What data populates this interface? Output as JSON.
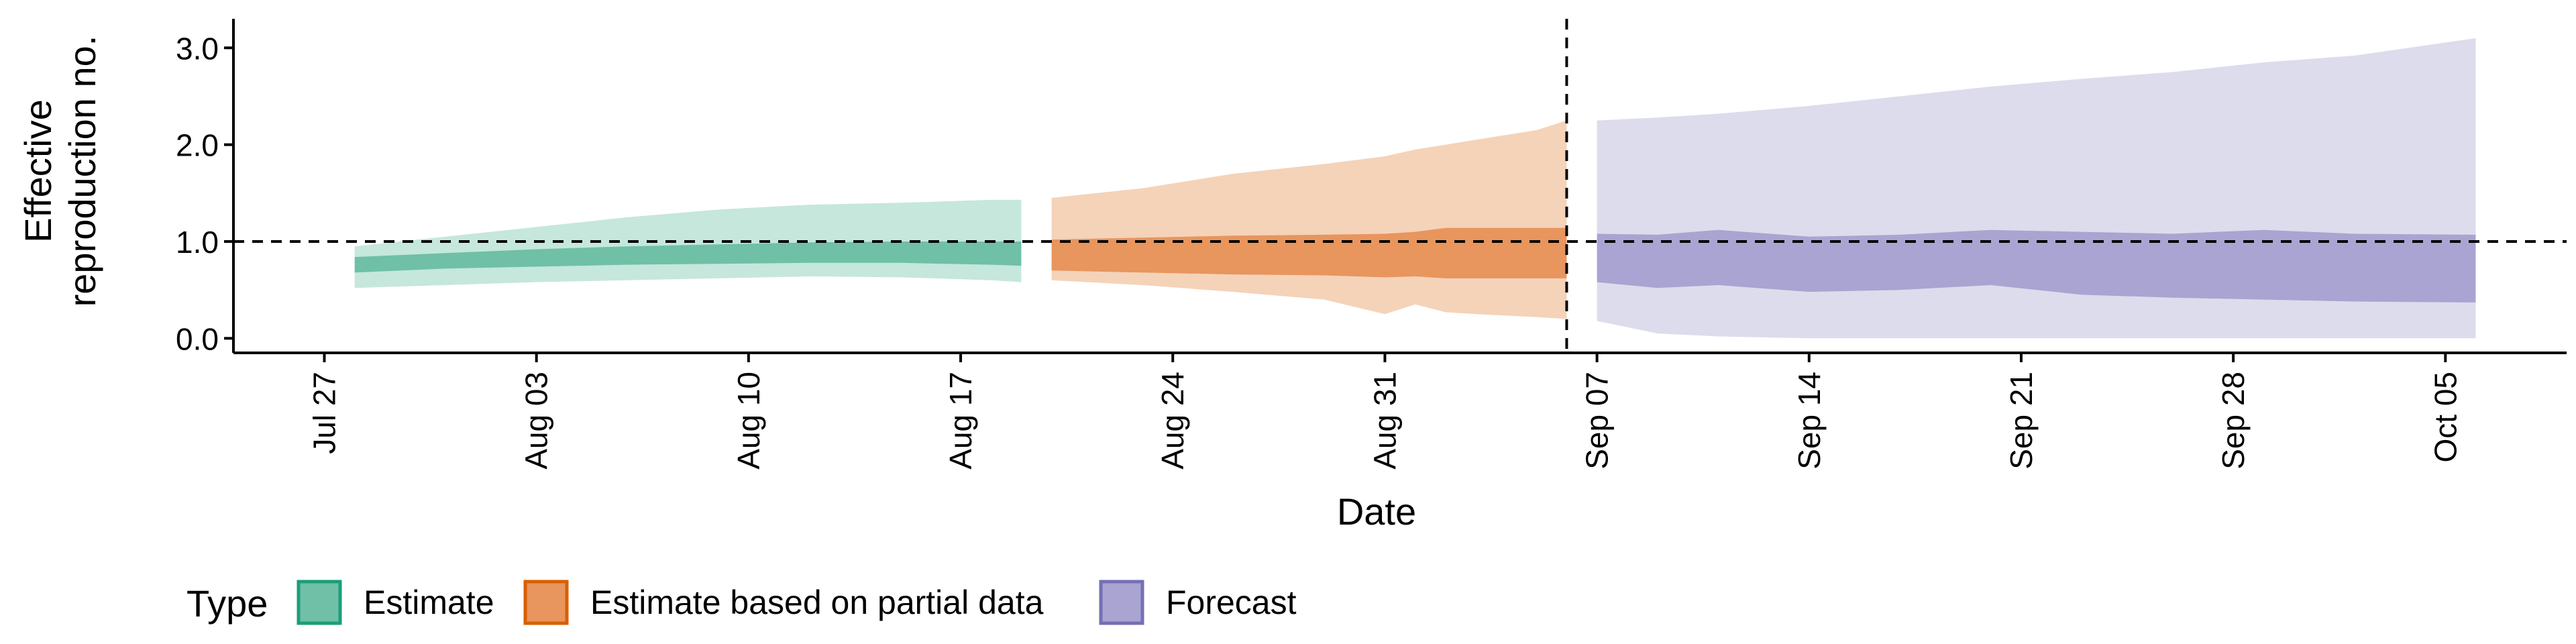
{
  "chart_data": {
    "type": "area",
    "title": "",
    "xlabel": "Date",
    "ylabel_lines": [
      "Effective",
      "reproduction no."
    ],
    "xlim": [
      "2020-07-24",
      "2020-10-09"
    ],
    "ylim": [
      -0.15,
      3.3
    ],
    "yticks": [
      0,
      1,
      2,
      3
    ],
    "ytick_labels": [
      "0.0",
      "1.0",
      "2.0",
      "3.0"
    ],
    "xticks": [
      "2020-07-27",
      "2020-08-03",
      "2020-08-10",
      "2020-08-17",
      "2020-08-24",
      "2020-08-31",
      "2020-09-07",
      "2020-09-14",
      "2020-09-21",
      "2020-09-28",
      "2020-10-05"
    ],
    "xtick_labels": [
      "Jul 27",
      "Aug 03",
      "Aug 10",
      "Aug 17",
      "Aug 24",
      "Aug 31",
      "Sep 07",
      "Sep 14",
      "Sep 21",
      "Sep 28",
      "Oct 05"
    ],
    "reference_lines": {
      "horizontal_y": 1.0,
      "vertical_x": "2020-09-06",
      "style": "dashed"
    },
    "grid": false,
    "legend": {
      "title": "Type",
      "position": "bottom-left"
    },
    "series": [
      {
        "name": "Estimate",
        "color_outer": "#c6e7dc",
        "color_inner": "#6fc0a6",
        "legend_fill": "#6fc0a6",
        "legend_stroke": "#1b9e77",
        "x": [
          "2020-07-28",
          "2020-07-31",
          "2020-08-03",
          "2020-08-06",
          "2020-08-09",
          "2020-08-12",
          "2020-08-15",
          "2020-08-18",
          "2020-08-19"
        ],
        "outer_lower": [
          0.52,
          0.55,
          0.58,
          0.6,
          0.62,
          0.64,
          0.63,
          0.6,
          0.58
        ],
        "outer_upper": [
          0.95,
          1.05,
          1.15,
          1.25,
          1.33,
          1.38,
          1.4,
          1.43,
          1.43
        ],
        "inner_lower": [
          0.68,
          0.72,
          0.74,
          0.76,
          0.77,
          0.78,
          0.78,
          0.76,
          0.75
        ],
        "inner_upper": [
          0.84,
          0.88,
          0.92,
          0.95,
          0.97,
          0.99,
          1.0,
          1.0,
          1.0
        ]
      },
      {
        "name": "Estimate based on partial data",
        "color_outer": "#f4d3b9",
        "color_inner": "#e8955e",
        "legend_fill": "#e8955e",
        "legend_stroke": "#d95f02",
        "x": [
          "2020-08-20",
          "2020-08-23",
          "2020-08-26",
          "2020-08-29",
          "2020-08-31",
          "2020-09-01",
          "2020-09-02",
          "2020-09-03",
          "2020-09-05",
          "2020-09-06"
        ],
        "outer_lower": [
          0.6,
          0.55,
          0.48,
          0.4,
          0.25,
          0.35,
          0.27,
          0.25,
          0.22,
          0.2
        ],
        "outer_upper": [
          1.45,
          1.55,
          1.7,
          1.8,
          1.88,
          1.95,
          2.0,
          2.05,
          2.15,
          2.25
        ],
        "inner_lower": [
          0.7,
          0.68,
          0.66,
          0.65,
          0.63,
          0.64,
          0.62,
          0.62,
          0.62,
          0.62
        ],
        "inner_upper": [
          1.02,
          1.04,
          1.06,
          1.07,
          1.08,
          1.1,
          1.14,
          1.14,
          1.14,
          1.14
        ]
      },
      {
        "name": "Forecast",
        "color_outer": "#dddcec",
        "color_inner": "#a9a4d1",
        "legend_fill": "#a9a4d1",
        "legend_stroke": "#7570b3",
        "x": [
          "2020-09-07",
          "2020-09-09",
          "2020-09-11",
          "2020-09-14",
          "2020-09-17",
          "2020-09-20",
          "2020-09-23",
          "2020-09-26",
          "2020-09-29",
          "2020-10-02",
          "2020-10-06"
        ],
        "outer_lower": [
          0.18,
          0.05,
          0.02,
          0.0,
          0.0,
          0.0,
          0.0,
          0.0,
          0.0,
          0.0,
          0.0
        ],
        "outer_upper": [
          2.25,
          2.28,
          2.32,
          2.4,
          2.5,
          2.6,
          2.68,
          2.75,
          2.85,
          2.92,
          3.1
        ],
        "inner_lower": [
          0.58,
          0.52,
          0.55,
          0.48,
          0.5,
          0.55,
          0.45,
          0.42,
          0.4,
          0.38,
          0.37
        ],
        "inner_upper": [
          1.08,
          1.07,
          1.12,
          1.05,
          1.07,
          1.12,
          1.1,
          1.08,
          1.12,
          1.08,
          1.07
        ]
      }
    ]
  }
}
